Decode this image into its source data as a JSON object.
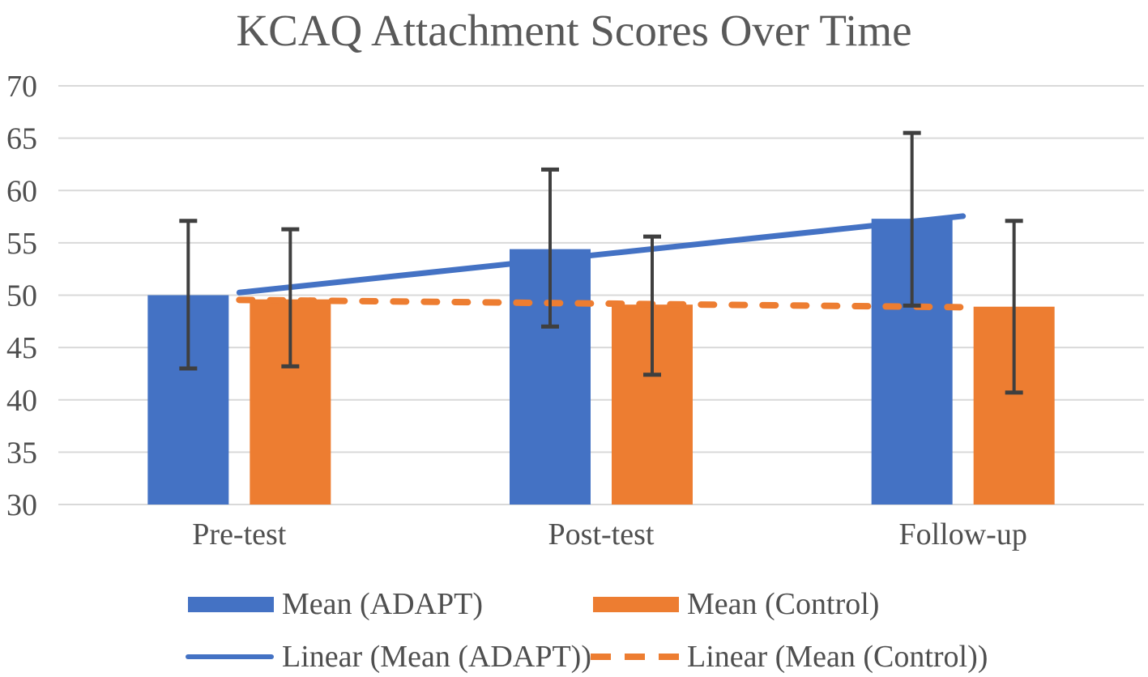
{
  "chart": {
    "title": "KCAQ Attachment Scores Over Time"
  },
  "chart_data": {
    "type": "bar",
    "title": "KCAQ Attachment Scores Over Time",
    "categories": [
      "Pre-test",
      "Post-test",
      "Follow-up"
    ],
    "series": [
      {
        "name": "Mean (ADAPT)",
        "color": "#4472C4",
        "values": [
          50.0,
          54.4,
          57.3
        ],
        "error_low": [
          43.0,
          47.0,
          49.0
        ],
        "error_high": [
          57.1,
          62.0,
          65.5
        ]
      },
      {
        "name": "Mean (Control)",
        "color": "#ED7D31",
        "values": [
          49.6,
          49.1,
          48.9
        ],
        "error_low": [
          43.2,
          42.4,
          40.7
        ],
        "error_high": [
          56.3,
          55.6,
          57.1
        ]
      }
    ],
    "trendlines": [
      {
        "name": "Linear (Mean (ADAPT))",
        "series": 0,
        "style": "solid",
        "color": "#4472C4"
      },
      {
        "name": "Linear (Mean (Control))",
        "series": 1,
        "style": "dashed",
        "color": "#ED7D31"
      }
    ],
    "ylim": [
      30,
      70
    ],
    "yticks": [
      30,
      35,
      40,
      45,
      50,
      55,
      60,
      65,
      70
    ],
    "xlabel": "",
    "ylabel": "",
    "grid": true,
    "legend_position": "bottom",
    "gridline_color": "#D9D9D9",
    "error_bar_color": "#3F3F3F",
    "text_color": "#4f4f4f"
  },
  "legend": {
    "items": [
      {
        "label": "Mean (ADAPT)",
        "swatch": "rect",
        "color": "#4472C4"
      },
      {
        "label": "Mean (Control)",
        "swatch": "rect",
        "color": "#ED7D31"
      },
      {
        "label": "Linear (Mean (ADAPT))",
        "swatch": "line",
        "color": "#4472C4"
      },
      {
        "label": "Linear (Mean (Control))",
        "swatch": "dashed-line",
        "color": "#ED7D31"
      }
    ]
  }
}
